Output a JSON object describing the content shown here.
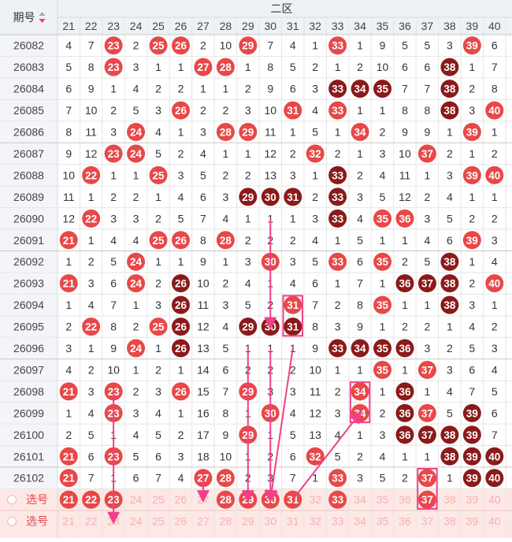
{
  "header": {
    "period_label": "期号",
    "zone_label": "二区",
    "columns": [
      21,
      22,
      23,
      24,
      25,
      26,
      27,
      28,
      29,
      30,
      31,
      32,
      33,
      34,
      35,
      36,
      37,
      38,
      39,
      40
    ]
  },
  "rows": [
    {
      "id": "26082",
      "cells": [
        4,
        7,
        "23H",
        2,
        "25H",
        "26H",
        2,
        10,
        "29H",
        7,
        4,
        1,
        "33H",
        1,
        9,
        5,
        5,
        3,
        "39H",
        6
      ]
    },
    {
      "id": "26083",
      "cells": [
        5,
        8,
        "23H",
        3,
        1,
        1,
        "27H",
        "28H",
        1,
        8,
        5,
        2,
        1,
        2,
        10,
        6,
        6,
        "38D",
        1,
        7
      ]
    },
    {
      "id": "26084",
      "cells": [
        6,
        9,
        1,
        4,
        2,
        2,
        1,
        1,
        2,
        9,
        6,
        3,
        "33D",
        "34D",
        "35D",
        7,
        7,
        "38D",
        2,
        8
      ]
    },
    {
      "id": "26085",
      "cells": [
        7,
        10,
        2,
        5,
        3,
        "26H",
        2,
        2,
        3,
        10,
        "31H",
        4,
        "33H",
        1,
        1,
        8,
        8,
        "38D",
        3,
        "40H"
      ]
    },
    {
      "id": "26086",
      "cells": [
        8,
        11,
        3,
        "24H",
        4,
        1,
        3,
        "28H",
        "29H",
        11,
        1,
        5,
        1,
        "34H",
        2,
        9,
        9,
        1,
        "39H",
        1
      ]
    },
    {
      "id": "26087",
      "cells": [
        9,
        12,
        "23H",
        "24H",
        5,
        2,
        4,
        1,
        1,
        12,
        2,
        "32H",
        2,
        1,
        3,
        10,
        "37H",
        2,
        1,
        2
      ]
    },
    {
      "id": "26088",
      "cells": [
        10,
        "22H",
        1,
        1,
        "25H",
        3,
        5,
        2,
        2,
        13,
        3,
        1,
        "33D",
        2,
        4,
        11,
        1,
        3,
        "39H",
        "40H"
      ]
    },
    {
      "id": "26089",
      "cells": [
        11,
        1,
        2,
        2,
        1,
        4,
        6,
        3,
        "29D",
        "30D",
        "31D",
        2,
        "33D",
        3,
        5,
        12,
        2,
        4,
        1,
        1
      ]
    },
    {
      "id": "26090",
      "cells": [
        12,
        "22H",
        3,
        3,
        2,
        5,
        7,
        4,
        1,
        1,
        1,
        3,
        "33D",
        4,
        "35H",
        "36H",
        3,
        5,
        2,
        2
      ]
    },
    {
      "id": "26091",
      "cells": [
        "21H",
        1,
        4,
        4,
        "25H",
        "26H",
        8,
        "28H",
        2,
        2,
        2,
        4,
        1,
        5,
        1,
        1,
        4,
        6,
        "39H",
        3
      ]
    },
    {
      "id": "26092",
      "cells": [
        1,
        2,
        5,
        "24H",
        1,
        1,
        9,
        1,
        3,
        "30H",
        3,
        5,
        "33H",
        6,
        "35H",
        2,
        5,
        "38D",
        1,
        4
      ]
    },
    {
      "id": "26093",
      "cells": [
        "21H",
        3,
        6,
        "24H",
        2,
        "26D",
        10,
        2,
        4,
        1,
        4,
        6,
        1,
        7,
        1,
        "36D",
        "37D",
        "38D",
        2,
        "40H"
      ]
    },
    {
      "id": "26094",
      "cells": [
        1,
        4,
        7,
        1,
        3,
        "26D",
        11,
        3,
        5,
        2,
        "31H",
        7,
        2,
        8,
        "35H",
        1,
        1,
        "38D",
        3,
        1
      ]
    },
    {
      "id": "26095",
      "cells": [
        2,
        "22H",
        8,
        2,
        "25H",
        "26D",
        12,
        4,
        "29D",
        "30D",
        "31D",
        8,
        3,
        9,
        1,
        2,
        2,
        1,
        4,
        2
      ]
    },
    {
      "id": "26096",
      "cells": [
        3,
        1,
        9,
        "24H",
        1,
        "26D",
        13,
        5,
        1,
        1,
        1,
        9,
        "33D",
        "34D",
        "35D",
        "36D",
        3,
        2,
        5,
        3
      ]
    },
    {
      "id": "26097",
      "cells": [
        4,
        2,
        10,
        1,
        2,
        1,
        14,
        6,
        2,
        2,
        2,
        10,
        1,
        1,
        "35H",
        1,
        "37H",
        3,
        6,
        4
      ]
    },
    {
      "id": "26098",
      "cells": [
        "21H",
        3,
        "23H",
        2,
        3,
        "26H",
        15,
        7,
        "29H",
        3,
        3,
        11,
        2,
        "34H",
        1,
        "36D",
        1,
        4,
        7,
        5
      ]
    },
    {
      "id": "26099",
      "cells": [
        1,
        4,
        "23H",
        3,
        4,
        1,
        16,
        8,
        1,
        "30H",
        4,
        12,
        3,
        "34H",
        2,
        "36D",
        "37H",
        5,
        "39D",
        6
      ]
    },
    {
      "id": "26100",
      "cells": [
        2,
        5,
        1,
        4,
        5,
        2,
        17,
        9,
        "29H",
        1,
        5,
        13,
        4,
        1,
        3,
        "36D",
        "37D",
        "38D",
        "39D",
        7
      ]
    },
    {
      "id": "26101",
      "cells": [
        "21H",
        6,
        "23H",
        5,
        6,
        3,
        18,
        10,
        1,
        2,
        6,
        "32H",
        5,
        2,
        4,
        1,
        1,
        "38D",
        "39D",
        "40D"
      ]
    },
    {
      "id": "26102",
      "cells": [
        "21H",
        7,
        1,
        6,
        7,
        4,
        "27H",
        "28H",
        2,
        3,
        7,
        1,
        "33H",
        3,
        5,
        2,
        "37H",
        1,
        "39D",
        "40D"
      ]
    }
  ],
  "select_rows": [
    {
      "label": "选号",
      "selected": [
        21,
        22,
        23,
        28,
        29,
        30,
        31,
        33,
        37
      ]
    },
    {
      "label": "选号",
      "selected": []
    }
  ],
  "chart_data": {
    "type": "table",
    "title": "",
    "x_label": "二区",
    "columns": [
      21,
      22,
      23,
      24,
      25,
      26,
      27,
      28,
      29,
      30,
      31,
      32,
      33,
      34,
      35,
      36,
      37,
      38,
      39,
      40
    ],
    "periods": [
      "26082",
      "26083",
      "26084",
      "26085",
      "26086",
      "26087",
      "26088",
      "26089",
      "26090",
      "26091",
      "26092",
      "26093",
      "26094",
      "26095",
      "26096",
      "26097",
      "26098",
      "26099",
      "26100",
      "26101",
      "26102"
    ],
    "hit_color_light": "#e84848",
    "hit_color_dark": "#8b1a1a",
    "arrow_color": "#f0408a",
    "grid": true
  }
}
